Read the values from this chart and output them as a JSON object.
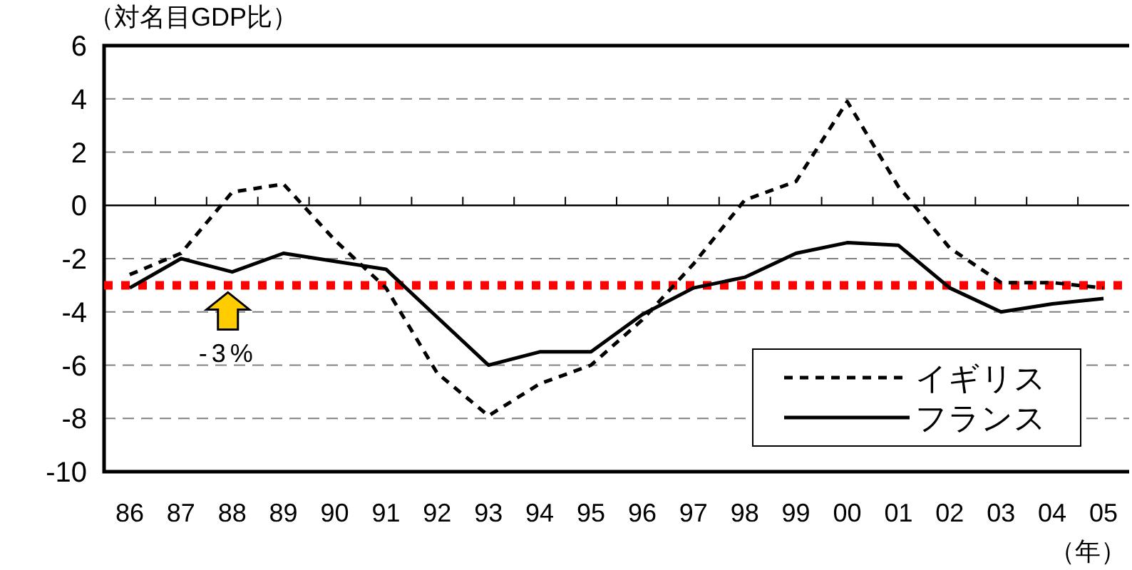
{
  "chart_data": {
    "type": "line",
    "ylabel": "（対名目GDP比）",
    "xlabel": "（年）",
    "categories": [
      "86",
      "87",
      "88",
      "89",
      "90",
      "91",
      "92",
      "93",
      "94",
      "95",
      "96",
      "97",
      "98",
      "99",
      "00",
      "01",
      "02",
      "03",
      "04",
      "05"
    ],
    "series": [
      {
        "name": "イギリス",
        "color": "#000000",
        "line_style": "dashed",
        "values": [
          -2.6,
          -1.8,
          0.5,
          0.8,
          -1.3,
          -3.1,
          -6.3,
          -7.9,
          -6.7,
          -6.0,
          -4.3,
          -2.2,
          0.2,
          0.9,
          3.9,
          0.7,
          -1.6,
          -2.9,
          -2.9,
          -3.1
        ]
      },
      {
        "name": "フランス",
        "color": "#000000",
        "line_style": "solid",
        "values": [
          -3.1,
          -2.0,
          -2.5,
          -1.8,
          -2.1,
          -2.4,
          -4.2,
          -6.0,
          -5.5,
          -5.5,
          -4.1,
          -3.1,
          -2.7,
          -1.8,
          -1.4,
          -1.5,
          -3.1,
          -4.0,
          -3.7,
          -3.5
        ]
      }
    ],
    "ylim": [
      -10,
      6
    ],
    "yticks": [
      -10,
      -8,
      -6,
      -4,
      -2,
      0,
      2,
      4,
      6
    ],
    "grid": "y",
    "legend": "bottom right",
    "marker": "none",
    "ref_lines": [
      {
        "axis": "y",
        "value": -3,
        "label": "-3%",
        "color": "#ff0000",
        "line_style": "dotted"
      }
    ]
  }
}
